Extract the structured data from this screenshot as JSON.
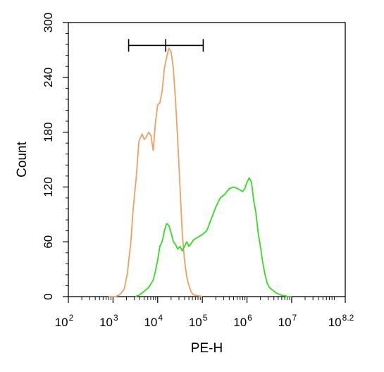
{
  "chart_data": {
    "type": "line",
    "xlabel": "PE-H",
    "ylabel": "Count",
    "x_scale": "log",
    "xlim_exponent": [
      2,
      8.2
    ],
    "ylim": [
      0,
      300
    ],
    "x_tick_base": "10",
    "x_tick_exponents": [
      "2",
      "3",
      "4",
      "5",
      "6",
      "7",
      "8.2"
    ],
    "y_ticks": [
      "0",
      "60",
      "120",
      "180",
      "240",
      "300"
    ],
    "grid": false,
    "colors": {
      "orange": "#f0a060",
      "green": "#33dd22",
      "axis": "#000000"
    },
    "series": [
      {
        "color": "#f0a060",
        "x_exponent": [
          2.9,
          3.05,
          3.15,
          3.25,
          3.32,
          3.4,
          3.45,
          3.52,
          3.58,
          3.65,
          3.7,
          3.75,
          3.8,
          3.85,
          3.9,
          3.95,
          4.0,
          4.05,
          4.1,
          4.15,
          4.2,
          4.25,
          4.3,
          4.35,
          4.4,
          4.45,
          4.5,
          4.55,
          4.6,
          4.65,
          4.7,
          4.75,
          4.8,
          4.9,
          5.0
        ],
        "y": [
          0,
          0,
          2,
          8,
          25,
          60,
          95,
          130,
          170,
          178,
          172,
          175,
          180,
          176,
          160,
          190,
          210,
          212,
          225,
          250,
          262,
          272,
          268,
          250,
          215,
          170,
          120,
          70,
          40,
          22,
          12,
          5,
          2,
          1,
          0
        ]
      },
      {
        "color": "#33dd22",
        "x_exponent": [
          3.5,
          3.6,
          3.7,
          3.8,
          3.9,
          3.95,
          4.0,
          4.05,
          4.1,
          4.15,
          4.2,
          4.25,
          4.3,
          4.35,
          4.4,
          4.45,
          4.5,
          4.55,
          4.6,
          4.65,
          4.7,
          4.75,
          4.8,
          4.9,
          5.0,
          5.1,
          5.2,
          5.3,
          5.4,
          5.5,
          5.6,
          5.7,
          5.8,
          5.9,
          5.95,
          6.0,
          6.05,
          6.1,
          6.15,
          6.2,
          6.25,
          6.3,
          6.35,
          6.4,
          6.45,
          6.5,
          6.55,
          6.6,
          6.65,
          6.7,
          6.75,
          6.8,
          6.85,
          6.9,
          7.0
        ],
        "y": [
          0,
          2,
          6,
          10,
          18,
          28,
          40,
          55,
          60,
          72,
          80,
          78,
          70,
          60,
          57,
          52,
          55,
          50,
          55,
          60,
          55,
          58,
          62,
          65,
          68,
          72,
          85,
          98,
          108,
          112,
          118,
          120,
          118,
          115,
          118,
          125,
          130,
          125,
          105,
          92,
          70,
          55,
          38,
          25,
          15,
          10,
          8,
          6,
          4,
          3,
          2,
          1,
          1,
          0,
          0
        ]
      }
    ],
    "annotation": {
      "type": "range-bar",
      "x_exponent_start": 3.35,
      "x_exponent_mid": 4.18,
      "x_exponent_end": 5.02,
      "y": 275
    }
  }
}
